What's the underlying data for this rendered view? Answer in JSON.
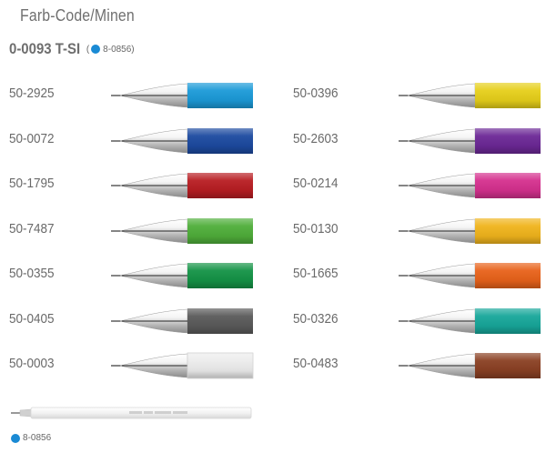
{
  "header": {
    "title": "Farb-Code/Minen",
    "model": "0-0093 T-SI",
    "refill_ref_open": "(",
    "refill_ref_code": "8-0856)",
    "refill_color": "#1a8ad4"
  },
  "left_pens": [
    {
      "code": "50-2925",
      "color": "#1b9ad8"
    },
    {
      "code": "50-0072",
      "color": "#1c4aa0"
    },
    {
      "code": "50-1795",
      "color": "#b81d22"
    },
    {
      "code": "50-7487",
      "color": "#4fae3a"
    },
    {
      "code": "50-0355",
      "color": "#149346"
    },
    {
      "code": "50-0405",
      "color": "#5a5a5a"
    },
    {
      "code": "50-0003",
      "color": "#ececec"
    }
  ],
  "right_pens": [
    {
      "code": "50-0396",
      "color": "#e6cf1a"
    },
    {
      "code": "50-2603",
      "color": "#6c2896"
    },
    {
      "code": "50-0214",
      "color": "#d5308e"
    },
    {
      "code": "50-0130",
      "color": "#f0b41c"
    },
    {
      "code": "50-1665",
      "color": "#e8621a"
    },
    {
      "code": "50-0326",
      "color": "#17a79a"
    },
    {
      "code": "50-0483",
      "color": "#8a4023"
    }
  ],
  "refill": {
    "code": "8-0856",
    "icon": "refill-dot-icon",
    "color": "#1a8ad4"
  }
}
